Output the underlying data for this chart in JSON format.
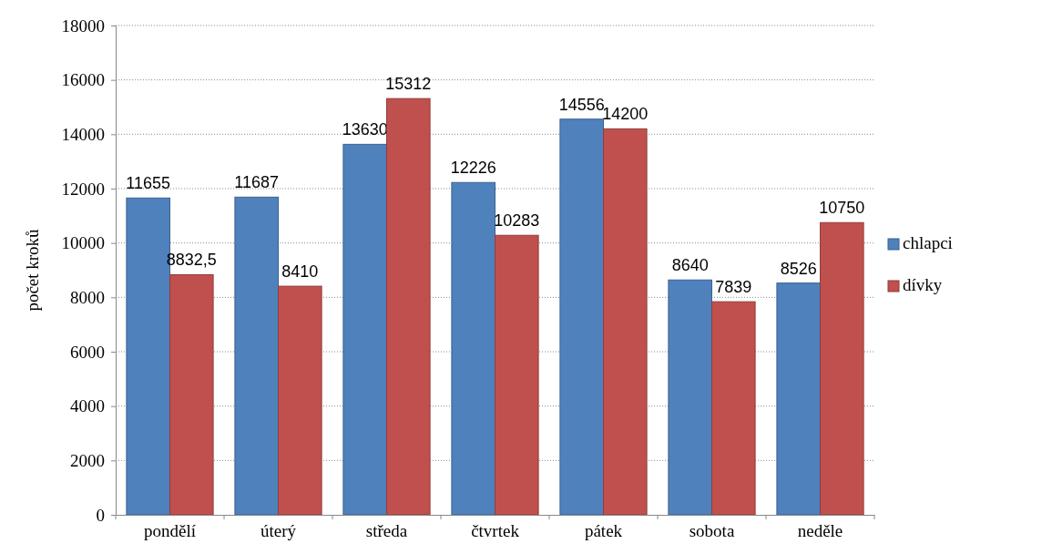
{
  "chart_data": {
    "type": "bar",
    "ylabel": "počet kroků",
    "categories": [
      "pondělí",
      "úterý",
      "středa",
      "čtvrtek",
      "pátek",
      "sobota",
      "neděle"
    ],
    "series": [
      {
        "name": "chlapci",
        "color": "#4f81bd",
        "values": [
          11655,
          11687,
          13630,
          12226,
          14556,
          8640,
          8526
        ],
        "value_labels": [
          "11655",
          "11687",
          "13630",
          "12226",
          "14556",
          "8640",
          "8526"
        ]
      },
      {
        "name": "dívky",
        "color": "#c0504d",
        "values": [
          8832.5,
          8410,
          15312,
          10283,
          14200,
          7839,
          10750
        ],
        "value_labels": [
          "8832,5",
          "8410",
          "15312",
          "10283",
          "14200",
          "7839",
          "10750"
        ]
      }
    ],
    "ylim": [
      0,
      18000
    ],
    "yticks": [
      0,
      2000,
      4000,
      6000,
      8000,
      10000,
      12000,
      14000,
      16000,
      18000
    ],
    "grid": "y",
    "legend": "right"
  }
}
